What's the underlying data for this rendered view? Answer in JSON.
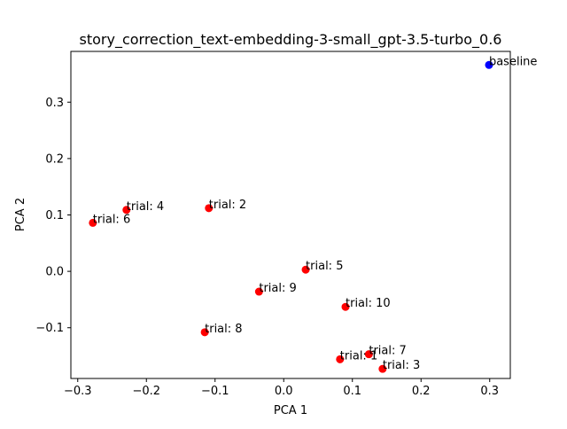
{
  "chart_data": {
    "type": "scatter",
    "title": "story_correction_text-embedding-3-small_gpt-3.5-turbo_0.6",
    "xlabel": "PCA 1",
    "ylabel": "PCA 2",
    "xlim": [
      -0.31,
      0.33
    ],
    "ylim": [
      -0.19,
      0.39
    ],
    "xticks": [
      -0.3,
      -0.2,
      -0.1,
      0.0,
      0.1,
      0.2,
      0.3
    ],
    "xtick_labels": [
      "−0.3",
      "−0.2",
      "−0.1",
      "0.0",
      "0.1",
      "0.2",
      "0.3"
    ],
    "yticks": [
      -0.1,
      0.0,
      0.1,
      0.2,
      0.3
    ],
    "ytick_labels": [
      "−0.1",
      "0.0",
      "0.1",
      "0.2",
      "0.3"
    ],
    "grid": false,
    "points": [
      {
        "label": "baseline",
        "x": 0.299,
        "y": 0.366,
        "color": "#0000ff"
      },
      {
        "label": "trial: 4",
        "x": -0.229,
        "y": 0.109,
        "color": "#ff0000"
      },
      {
        "label": "trial: 2",
        "x": -0.109,
        "y": 0.112,
        "color": "#ff0000"
      },
      {
        "label": "trial: 6",
        "x": -0.278,
        "y": 0.086,
        "color": "#ff0000"
      },
      {
        "label": "trial: 5",
        "x": 0.032,
        "y": 0.003,
        "color": "#ff0000"
      },
      {
        "label": "trial: 9",
        "x": -0.036,
        "y": -0.036,
        "color": "#ff0000"
      },
      {
        "label": "trial: 10",
        "x": 0.09,
        "y": -0.063,
        "color": "#ff0000"
      },
      {
        "label": "trial: 8",
        "x": -0.115,
        "y": -0.108,
        "color": "#ff0000"
      },
      {
        "label": "trial: 7",
        "x": 0.124,
        "y": -0.147,
        "color": "#ff0000"
      },
      {
        "label": "trial: 1",
        "x": 0.082,
        "y": -0.156,
        "color": "#ff0000"
      },
      {
        "label": "trial: 3",
        "x": 0.144,
        "y": -0.173,
        "color": "#ff0000"
      }
    ]
  }
}
